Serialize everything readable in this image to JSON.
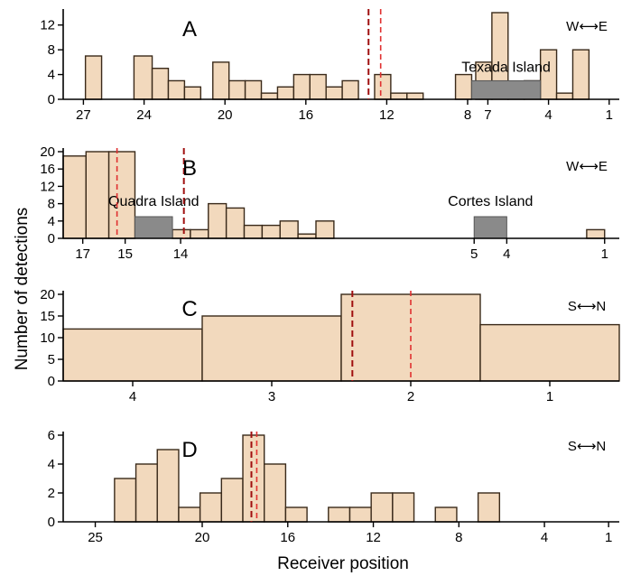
{
  "figure": {
    "ylabel": "Number of detections",
    "xlabel": "Receiver position"
  },
  "colors": {
    "bar_fill": "#f2d9bd",
    "bar_stroke": "#3a2a1a",
    "island_fill": "#8a8a8a",
    "line_dark_red": "#a01010",
    "line_red": "#e03030"
  },
  "chart_data": [
    {
      "type": "bar",
      "panel": "A",
      "direction": "W↔E",
      "direction_text": "W⟷E",
      "xlim": [
        28,
        0.5
      ],
      "ylim": [
        0,
        14
      ],
      "yticks": [
        0,
        4,
        8,
        12
      ],
      "xticks": [
        {
          "pos": 27,
          "label": "27"
        },
        {
          "pos": 24,
          "label": "24"
        },
        {
          "pos": 20,
          "label": "20"
        },
        {
          "pos": 16,
          "label": "16"
        },
        {
          "pos": 12,
          "label": "12"
        },
        {
          "pos": 8,
          "label": "8"
        },
        {
          "pos": 7,
          "label": "7"
        },
        {
          "pos": 4,
          "label": "4"
        },
        {
          "pos": 1,
          "label": "1"
        }
      ],
      "bars": [
        {
          "x0": 26.9,
          "x1": 26.1,
          "value": 7
        },
        {
          "x0": 24.5,
          "x1": 23.6,
          "value": 7
        },
        {
          "x0": 23.6,
          "x1": 22.8,
          "value": 5
        },
        {
          "x0": 22.8,
          "x1": 22.0,
          "value": 3
        },
        {
          "x0": 22.0,
          "x1": 21.2,
          "value": 2
        },
        {
          "x0": 20.6,
          "x1": 19.8,
          "value": 6
        },
        {
          "x0": 19.8,
          "x1": 19.0,
          "value": 3
        },
        {
          "x0": 19.0,
          "x1": 18.2,
          "value": 3
        },
        {
          "x0": 18.2,
          "x1": 17.4,
          "value": 1
        },
        {
          "x0": 17.4,
          "x1": 16.6,
          "value": 2
        },
        {
          "x0": 16.6,
          "x1": 15.8,
          "value": 4
        },
        {
          "x0": 15.8,
          "x1": 15.0,
          "value": 4
        },
        {
          "x0": 15.0,
          "x1": 14.2,
          "value": 2
        },
        {
          "x0": 14.2,
          "x1": 13.4,
          "value": 3
        },
        {
          "x0": 12.6,
          "x1": 11.8,
          "value": 4
        },
        {
          "x0": 11.8,
          "x1": 11.0,
          "value": 1
        },
        {
          "x0": 11.0,
          "x1": 10.2,
          "value": 1
        },
        {
          "x0": 8.6,
          "x1": 7.8,
          "value": 4
        },
        {
          "x0": 7.6,
          "x1": 6.8,
          "value": 6
        },
        {
          "x0": 6.8,
          "x1": 6.0,
          "value": 14
        },
        {
          "x0": 6.0,
          "x1": 5.2,
          "value": 1
        },
        {
          "x0": 5.2,
          "x1": 4.4,
          "value": 3
        },
        {
          "x0": 4.4,
          "x1": 3.6,
          "value": 8
        },
        {
          "x0": 3.6,
          "x1": 2.8,
          "value": 1
        },
        {
          "x0": 2.8,
          "x1": 2.0,
          "value": 8
        }
      ],
      "islands": [
        {
          "name": "Texada Island",
          "x0": 7.8,
          "x1": 4.4,
          "value": 3
        }
      ],
      "vlines": [
        {
          "x": 12.9,
          "style": "dark"
        },
        {
          "x": 12.3,
          "style": "light"
        }
      ]
    },
    {
      "type": "bar",
      "panel": "B",
      "direction": "W↔E",
      "direction_text": "W⟷E",
      "xlim": [
        17.6,
        0.55
      ],
      "ylim": [
        0,
        20
      ],
      "yticks": [
        0,
        4,
        8,
        12,
        16,
        20
      ],
      "xticks": [
        {
          "pos": 17,
          "label": "17"
        },
        {
          "pos": 15.7,
          "label": "15"
        },
        {
          "pos": 14,
          "label": "14"
        },
        {
          "pos": 5,
          "label": "5"
        },
        {
          "pos": 4,
          "label": "4"
        },
        {
          "pos": 1,
          "label": "1"
        }
      ],
      "bars": [
        {
          "x0": 17.6,
          "x1": 16.9,
          "value": 19
        },
        {
          "x0": 16.9,
          "x1": 16.2,
          "value": 20
        },
        {
          "x0": 16.2,
          "x1": 15.4,
          "value": 20
        },
        {
          "x0": 14.25,
          "x1": 13.7,
          "value": 2
        },
        {
          "x0": 13.7,
          "x1": 13.15,
          "value": 2
        },
        {
          "x0": 13.15,
          "x1": 12.6,
          "value": 8
        },
        {
          "x0": 12.6,
          "x1": 12.05,
          "value": 7
        },
        {
          "x0": 12.05,
          "x1": 11.5,
          "value": 3
        },
        {
          "x0": 11.5,
          "x1": 10.95,
          "value": 3
        },
        {
          "x0": 10.95,
          "x1": 10.4,
          "value": 4
        },
        {
          "x0": 10.4,
          "x1": 9.85,
          "value": 1
        },
        {
          "x0": 9.85,
          "x1": 9.3,
          "value": 4
        },
        {
          "x0": 1.55,
          "x1": 1.0,
          "value": 2
        }
      ],
      "islands": [
        {
          "name": "Quadra Island",
          "x0": 15.4,
          "x1": 14.25,
          "value": 5
        },
        {
          "name": "Cortes Island",
          "x0": 5.0,
          "x1": 4.0,
          "value": 5
        }
      ],
      "vlines": [
        {
          "x": 15.95,
          "style": "light"
        },
        {
          "x": 13.9,
          "style": "dark"
        }
      ]
    },
    {
      "type": "bar",
      "panel": "C",
      "direction": "S↔N",
      "direction_text": "S⟷N",
      "xlim": [
        4.5,
        0.5
      ],
      "ylim": [
        0,
        20
      ],
      "yticks": [
        0,
        5,
        10,
        15,
        20
      ],
      "xticks": [
        {
          "pos": 4,
          "label": "4"
        },
        {
          "pos": 3,
          "label": "3"
        },
        {
          "pos": 2,
          "label": "2"
        },
        {
          "pos": 1,
          "label": "1"
        }
      ],
      "bars": [
        {
          "x0": 4.5,
          "x1": 3.5,
          "value": 12
        },
        {
          "x0": 3.5,
          "x1": 2.5,
          "value": 15
        },
        {
          "x0": 2.5,
          "x1": 1.5,
          "value": 20
        },
        {
          "x0": 1.5,
          "x1": 0.5,
          "value": 13
        }
      ],
      "islands": [],
      "vlines": [
        {
          "x": 2.42,
          "style": "dark"
        },
        {
          "x": 2.0,
          "style": "light"
        }
      ]
    },
    {
      "type": "bar",
      "panel": "D",
      "direction": "S↔N",
      "direction_text": "S⟷N",
      "xlim": [
        26.5,
        0.5
      ],
      "ylim": [
        0,
        6
      ],
      "yticks": [
        0,
        2,
        4,
        6
      ],
      "xticks": [
        {
          "pos": 25,
          "label": "25"
        },
        {
          "pos": 20,
          "label": "20"
        },
        {
          "pos": 16,
          "label": "16"
        },
        {
          "pos": 12,
          "label": "12"
        },
        {
          "pos": 8,
          "label": "8"
        },
        {
          "pos": 4,
          "label": "4"
        },
        {
          "pos": 1,
          "label": "1"
        }
      ],
      "bars": [
        {
          "x0": 24.1,
          "x1": 23.1,
          "value": 3
        },
        {
          "x0": 23.1,
          "x1": 22.1,
          "value": 4
        },
        {
          "x0": 22.1,
          "x1": 21.1,
          "value": 5
        },
        {
          "x0": 21.1,
          "x1": 20.1,
          "value": 1
        },
        {
          "x0": 20.1,
          "x1": 19.1,
          "value": 2
        },
        {
          "x0": 19.1,
          "x1": 18.1,
          "value": 3
        },
        {
          "x0": 18.1,
          "x1": 17.1,
          "value": 6
        },
        {
          "x0": 17.1,
          "x1": 16.1,
          "value": 4
        },
        {
          "x0": 16.1,
          "x1": 15.1,
          "value": 1
        },
        {
          "x0": 14.1,
          "x1": 13.1,
          "value": 1
        },
        {
          "x0": 13.1,
          "x1": 12.1,
          "value": 1
        },
        {
          "x0": 12.1,
          "x1": 11.1,
          "value": 2
        },
        {
          "x0": 11.1,
          "x1": 10.1,
          "value": 2
        },
        {
          "x0": 9.1,
          "x1": 8.1,
          "value": 1
        },
        {
          "x0": 7.1,
          "x1": 6.1,
          "value": 2
        }
      ],
      "islands": [],
      "vlines": [
        {
          "x": 17.7,
          "style": "dark"
        },
        {
          "x": 17.45,
          "style": "light"
        }
      ]
    }
  ]
}
